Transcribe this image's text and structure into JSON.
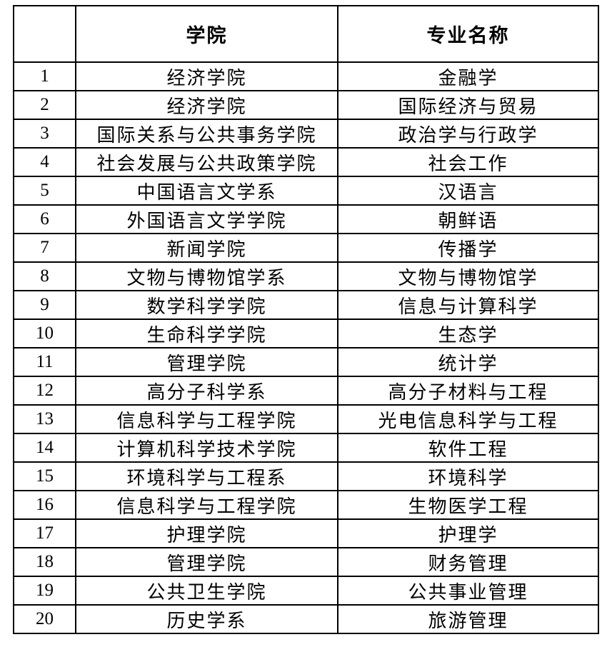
{
  "colors": {
    "border": "#000000",
    "background": "#ffffff",
    "text": "#000000"
  },
  "table": {
    "headers": {
      "index": "",
      "college": "学院",
      "major": "专业名称"
    },
    "rows": [
      {
        "index": "1",
        "college": "经济学院",
        "major": "金融学"
      },
      {
        "index": "2",
        "college": "经济学院",
        "major": "国际经济与贸易"
      },
      {
        "index": "3",
        "college": "国际关系与公共事务学院",
        "major": "政治学与行政学"
      },
      {
        "index": "4",
        "college": "社会发展与公共政策学院",
        "major": "社会工作"
      },
      {
        "index": "5",
        "college": "中国语言文学系",
        "major": "汉语言"
      },
      {
        "index": "6",
        "college": "外国语言文学学院",
        "major": "朝鲜语"
      },
      {
        "index": "7",
        "college": "新闻学院",
        "major": "传播学"
      },
      {
        "index": "8",
        "college": "文物与博物馆学系",
        "major": "文物与博物馆学"
      },
      {
        "index": "9",
        "college": "数学科学学院",
        "major": "信息与计算科学"
      },
      {
        "index": "10",
        "college": "生命科学学院",
        "major": "生态学"
      },
      {
        "index": "11",
        "college": "管理学院",
        "major": "统计学"
      },
      {
        "index": "12",
        "college": "高分子科学系",
        "major": "高分子材料与工程"
      },
      {
        "index": "13",
        "college": "信息科学与工程学院",
        "major": "光电信息科学与工程"
      },
      {
        "index": "14",
        "college": "计算机科学技术学院",
        "major": "软件工程"
      },
      {
        "index": "15",
        "college": "环境科学与工程系",
        "major": "环境科学"
      },
      {
        "index": "16",
        "college": "信息科学与工程学院",
        "major": "生物医学工程"
      },
      {
        "index": "17",
        "college": "护理学院",
        "major": "护理学"
      },
      {
        "index": "18",
        "college": "管理学院",
        "major": "财务管理"
      },
      {
        "index": "19",
        "college": "公共卫生学院",
        "major": "公共事业管理"
      },
      {
        "index": "20",
        "college": "历史学系",
        "major": "旅游管理"
      }
    ]
  }
}
